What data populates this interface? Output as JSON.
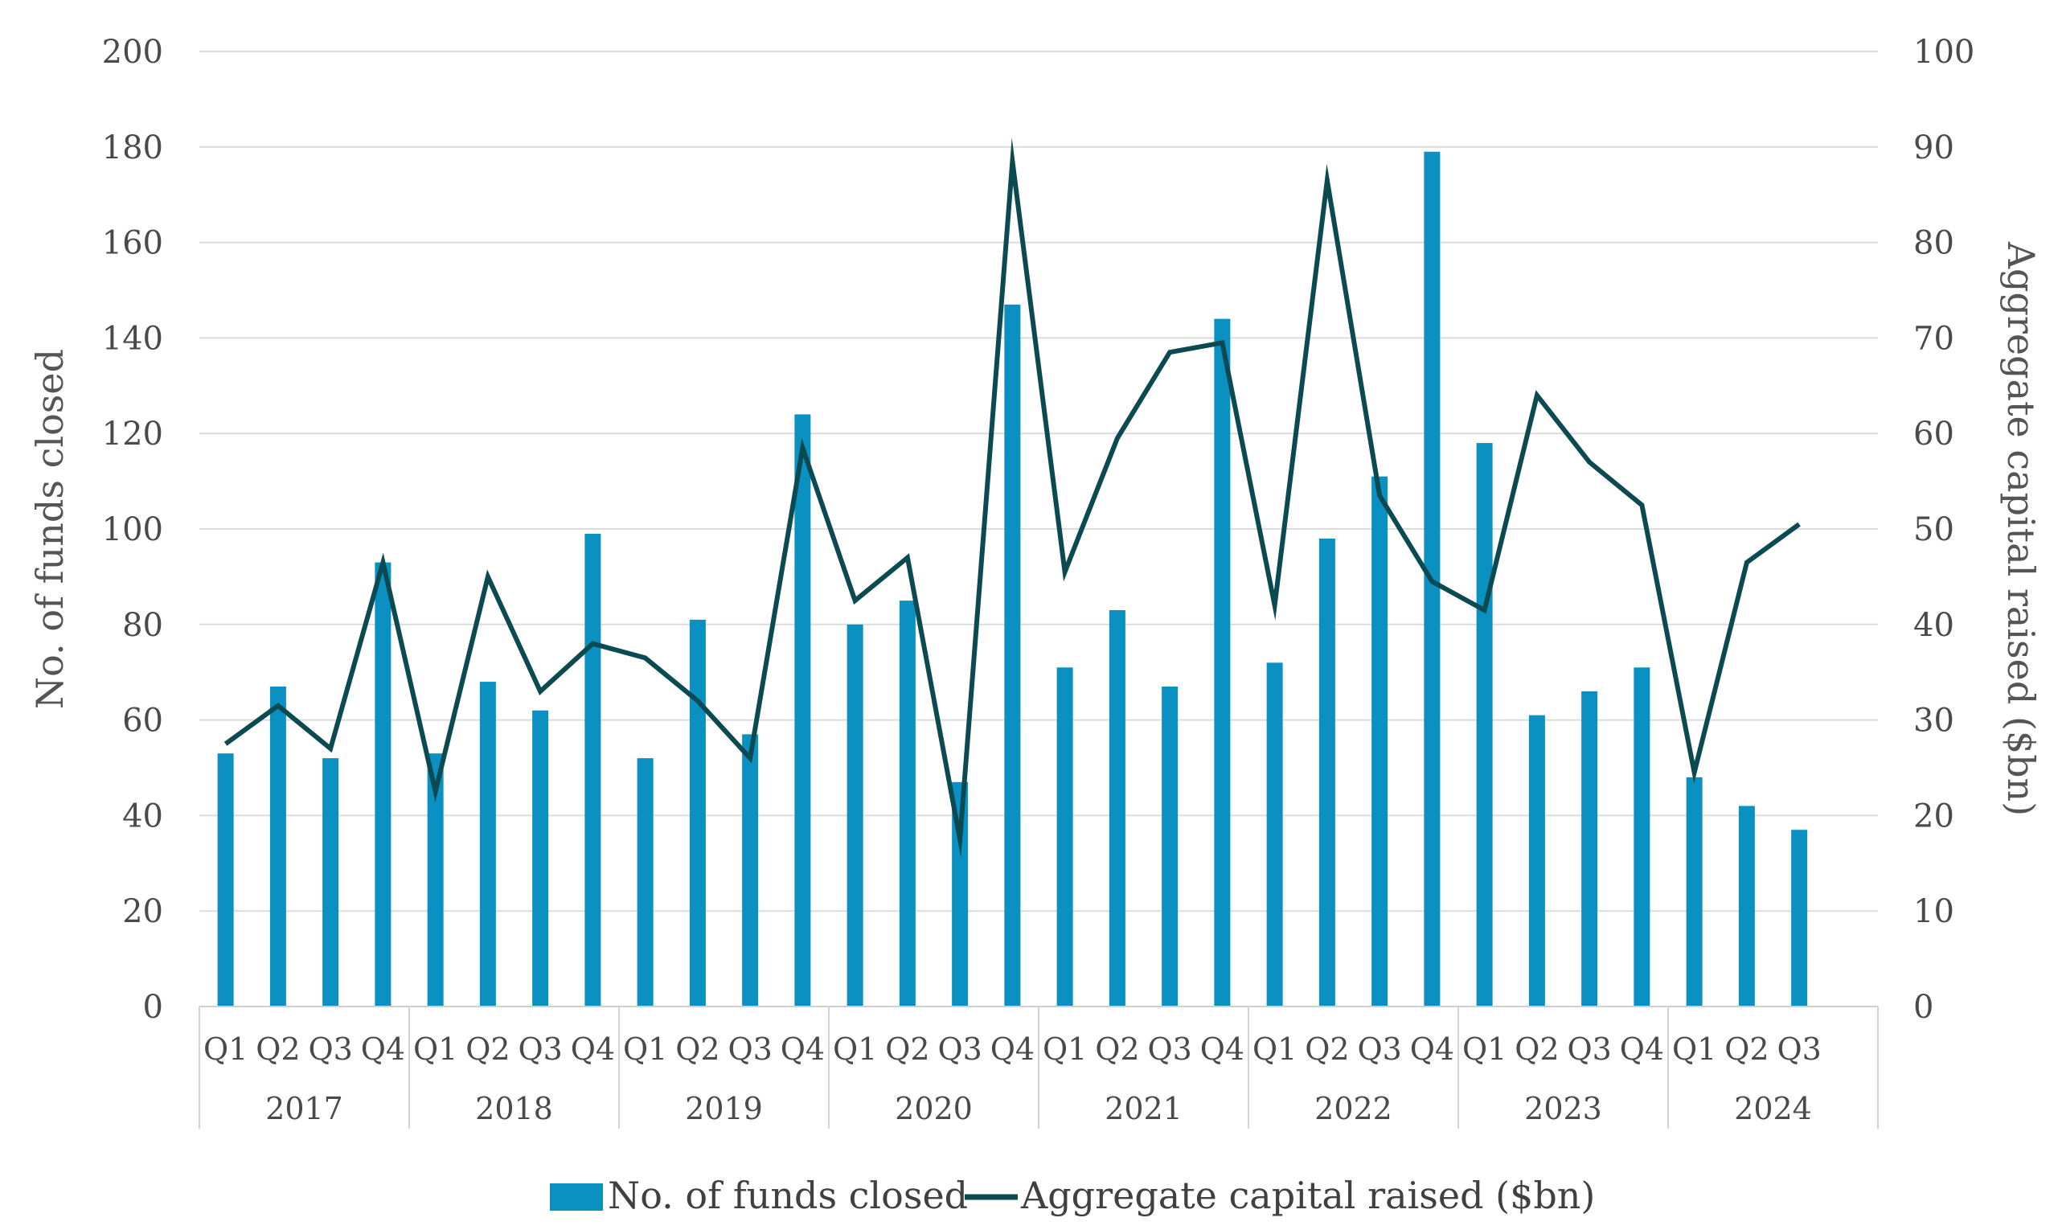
{
  "chart_data": {
    "type": "bar",
    "categories": [
      "Q1",
      "Q2",
      "Q3",
      "Q4",
      "Q1",
      "Q2",
      "Q3",
      "Q4",
      "Q1",
      "Q2",
      "Q3",
      "Q4",
      "Q1",
      "Q2",
      "Q3",
      "Q4",
      "Q1",
      "Q2",
      "Q3",
      "Q4",
      "Q1",
      "Q2",
      "Q3",
      "Q4",
      "Q1",
      "Q2",
      "Q3",
      "Q4",
      "Q1",
      "Q2",
      "Q3"
    ],
    "groups": [
      {
        "label": "2017",
        "count": 4
      },
      {
        "label": "2018",
        "count": 4
      },
      {
        "label": "2019",
        "count": 4
      },
      {
        "label": "2020",
        "count": 4
      },
      {
        "label": "2021",
        "count": 4
      },
      {
        "label": "2022",
        "count": 4
      },
      {
        "label": "2023",
        "count": 4
      },
      {
        "label": "2024",
        "count": 3
      }
    ],
    "series": [
      {
        "name": "No. of funds closed",
        "type": "bar",
        "axis": "left",
        "color": "#0a91c2",
        "values": [
          53,
          67,
          52,
          93,
          53,
          68,
          62,
          99,
          52,
          81,
          57,
          124,
          80,
          85,
          47,
          147,
          71,
          83,
          67,
          144,
          72,
          98,
          111,
          179,
          118,
          61,
          66,
          71,
          48,
          42,
          37
        ]
      },
      {
        "name": "Aggregate capital raised ($bn)",
        "type": "line",
        "axis": "right",
        "color": "#0c4a52",
        "values": [
          27.5,
          31.5,
          27,
          46.5,
          22.5,
          45,
          33,
          38,
          36.5,
          32,
          26,
          58.5,
          42.5,
          47,
          17.5,
          88.5,
          45.5,
          59.5,
          68.5,
          69.5,
          42,
          86.5,
          53.5,
          44.5,
          41.5,
          64,
          57,
          52.5,
          24.5,
          46.5,
          50.5
        ]
      }
    ],
    "ylabel": "No. of funds closed",
    "ylabel_right": "Aggregate capital raised ($bn)",
    "ylim": [
      0,
      200
    ],
    "ylim_right": [
      0,
      100
    ],
    "yticks": [
      0,
      20,
      40,
      60,
      80,
      100,
      120,
      140,
      160,
      180,
      200
    ],
    "yticks_right": [
      0,
      10,
      20,
      30,
      40,
      50,
      60,
      70,
      80,
      90,
      100
    ],
    "grid": true,
    "legend": "bottom"
  },
  "legend": {
    "bar_label": "No. of funds closed",
    "line_label": "Aggregate capital raised ($bn)"
  }
}
